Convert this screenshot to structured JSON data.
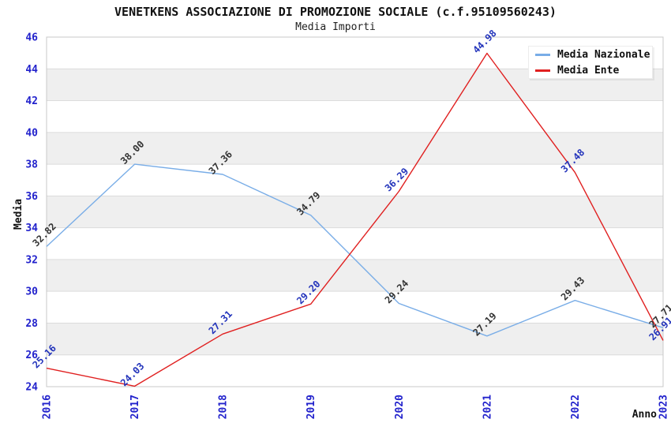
{
  "header": {
    "title": "VENETKENS ASSOCIAZIONE DI PROMOZIONE SOCIALE (c.f.95109560243)",
    "subtitle": "Media Importi"
  },
  "chart_data": {
    "type": "line",
    "x": [
      2016,
      2017,
      2018,
      2019,
      2020,
      2021,
      2022,
      2023
    ],
    "xlabel": "Anno",
    "ylabel": "Media",
    "ylim": [
      24,
      46
    ],
    "ytick_step": 2,
    "grid": "horizontal",
    "alternating_bands": true,
    "legend_position": "top-right",
    "series": [
      {
        "name": "Media Nazionale",
        "color": "#79ADE7",
        "label_color": "#333333",
        "values": [
          32.82,
          38.0,
          37.36,
          34.79,
          29.24,
          27.19,
          29.43,
          27.71
        ]
      },
      {
        "name": "Media Ente",
        "color": "#E02020",
        "label_color": "#2233BB",
        "values": [
          25.16,
          24.03,
          27.31,
          29.2,
          36.29,
          44.98,
          37.48,
          26.91
        ]
      }
    ],
    "colors": {
      "tick_label": "#2222CC",
      "band": "#EFEFEF",
      "gridline": "#DCDCDC",
      "frame": "#C8C8C8"
    }
  }
}
